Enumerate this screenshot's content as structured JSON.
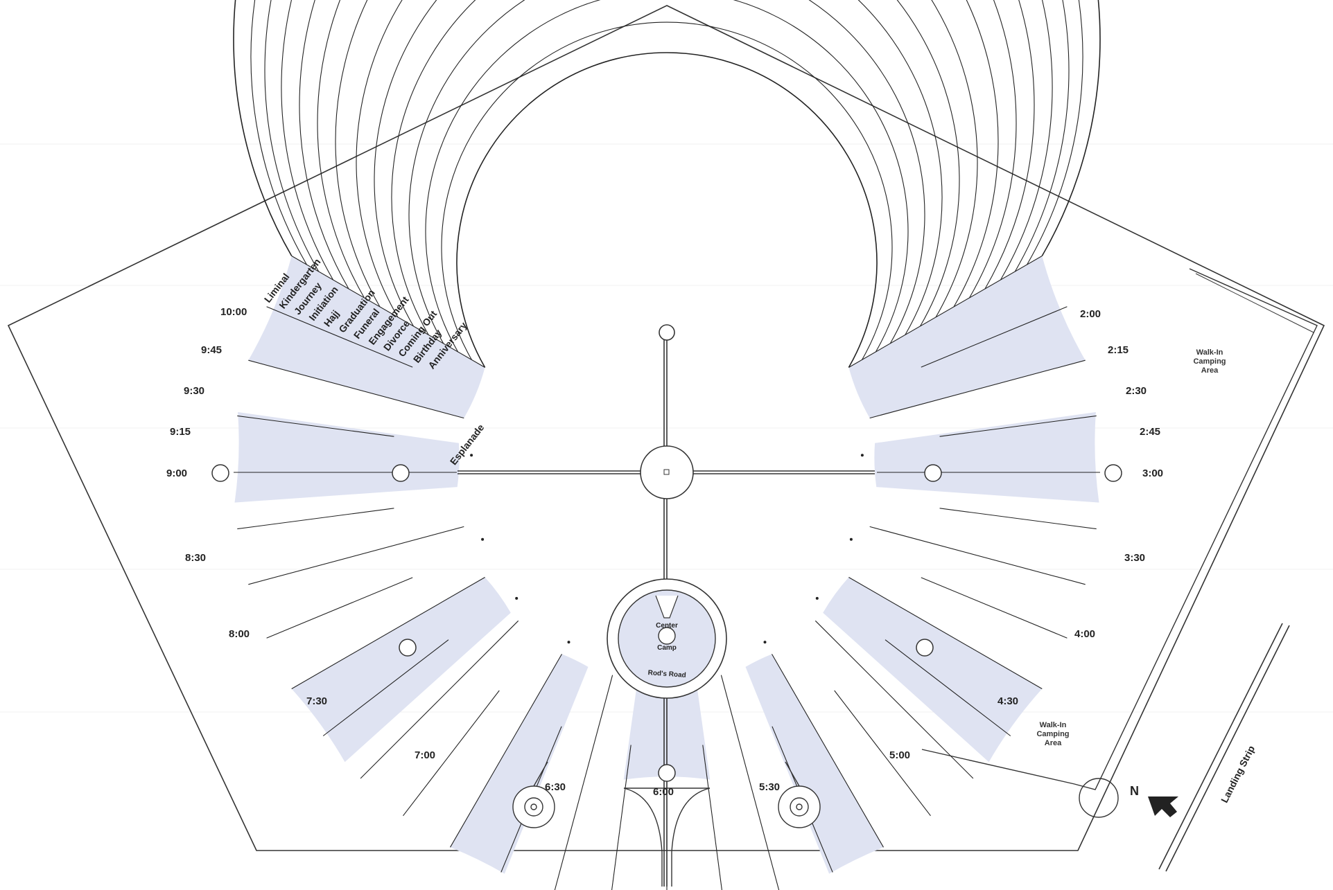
{
  "streets": [
    "Liminal",
    "Kindergarten",
    "Journey",
    "Initiation",
    "Hajj",
    "Graduation",
    "Funeral",
    "Engagement",
    "Divorce",
    "Coming Out",
    "Birthday",
    "Anniversary",
    "Esplanade"
  ],
  "times_left": [
    "10:00",
    "9:45",
    "9:30",
    "9:15",
    "9:00",
    "8:30",
    "8:00",
    "7:30",
    "7:00",
    "6:30"
  ],
  "times_center": "6:00",
  "times_right": [
    "2:00",
    "2:15",
    "2:30",
    "2:45",
    "3:00",
    "3:30",
    "4:00",
    "4:30",
    "5:00",
    "5:30"
  ],
  "center_camp": {
    "line1": "Center",
    "line2": "Camp",
    "road": "Rod's Road"
  },
  "walk_in_top": [
    "Walk-In",
    "Camping",
    "Area"
  ],
  "walk_in_bottom": [
    "Walk-In",
    "Camping",
    "Area"
  ],
  "landing_strip": "Landing Strip",
  "north": "N",
  "colors": {
    "line": "#222222",
    "fill": "#dfe3f2",
    "paper": "#ffffff"
  }
}
